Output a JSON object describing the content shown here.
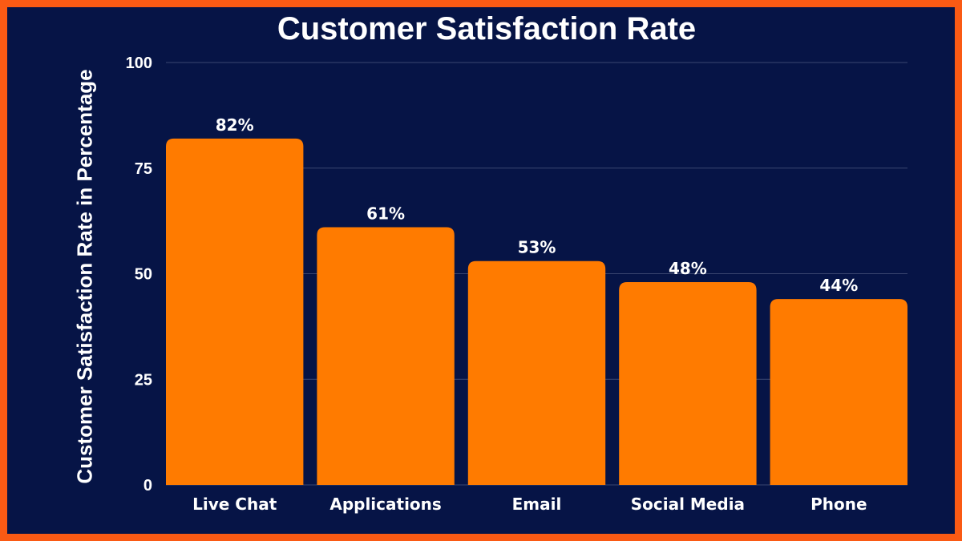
{
  "colors": {
    "background": "#061446",
    "border": "#fa5a14",
    "bar": "#ff7b00",
    "text": "#ffffff",
    "grid": "#3a4670"
  },
  "chart_data": {
    "type": "bar",
    "title": "Customer Satisfaction Rate",
    "xlabel": "",
    "ylabel": "Customer Satisfaction Rate in Percentage",
    "categories": [
      "Live Chat",
      "Applications",
      "Email",
      "Social Media",
      "Phone"
    ],
    "values": [
      82,
      61,
      53,
      48,
      44
    ],
    "data_labels": [
      "82%",
      "61%",
      "53%",
      "48%",
      "44%"
    ],
    "yticks": [
      0,
      25,
      50,
      75,
      100
    ],
    "ylim": [
      0,
      100
    ],
    "grid": true
  }
}
